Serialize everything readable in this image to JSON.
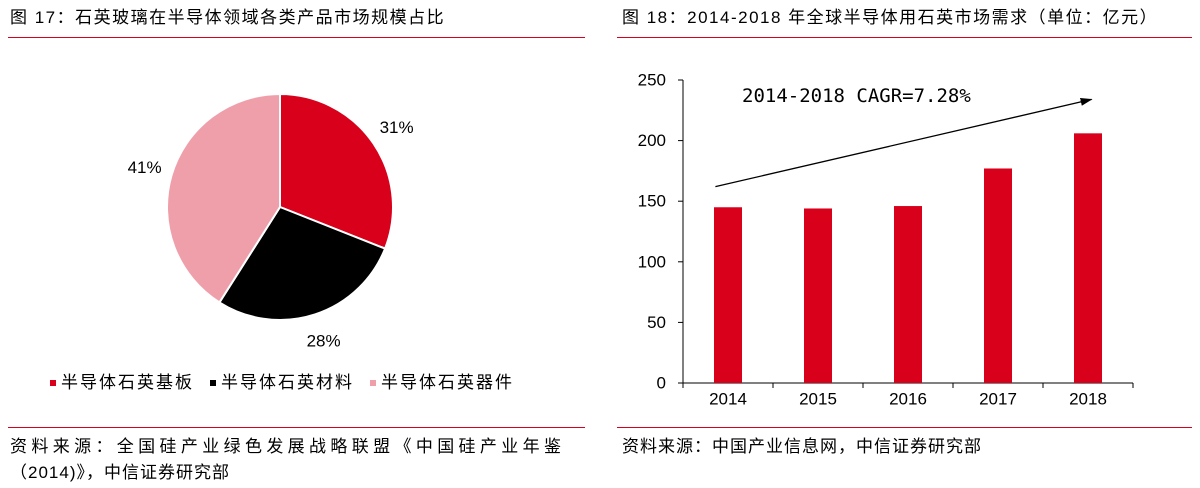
{
  "colors": {
    "accent": "#D9001B",
    "text": "#000000"
  },
  "figures": [
    {
      "source_lines": [
        "资料来源：全国硅产业绿色发展战略联盟《中国硅产业年鉴",
        "（2014)》，中信证券研究部"
      ]
    },
    {
      "source_lines": [
        "资料来源：中国产业信息网，中信证券研究部"
      ]
    }
  ],
  "chart_data": [
    {
      "type": "pie",
      "title": "图 17：石英玻璃在半导体领域各类产品市场规模占比",
      "slices": [
        {
          "label": "半导体石英基板",
          "value": 31,
          "value_label": "31%",
          "color": "#D9001B"
        },
        {
          "label": "半导体石英材料",
          "value": 28,
          "value_label": "28%",
          "color": "#000000"
        },
        {
          "label": "半导体石英器件",
          "value": 41,
          "value_label": "41%",
          "color": "#EF9FAA"
        }
      ],
      "legend": "bottom"
    },
    {
      "type": "bar",
      "title": "图 18：2014-2018 年全球半导体用石英市场需求（单位：亿元）",
      "categories": [
        "2014",
        "2015",
        "2016",
        "2017",
        "2018"
      ],
      "values": [
        145,
        144,
        146,
        177,
        206
      ],
      "xlabel": "",
      "ylabel": "",
      "ylim": [
        0,
        250
      ],
      "yticks": [
        0,
        50,
        100,
        150,
        200,
        250
      ],
      "annotation": "2014-2018 CAGR=7.28%",
      "trend_arrow": true,
      "bar_color": "#D9001B",
      "grid": false,
      "legend": "none"
    }
  ]
}
